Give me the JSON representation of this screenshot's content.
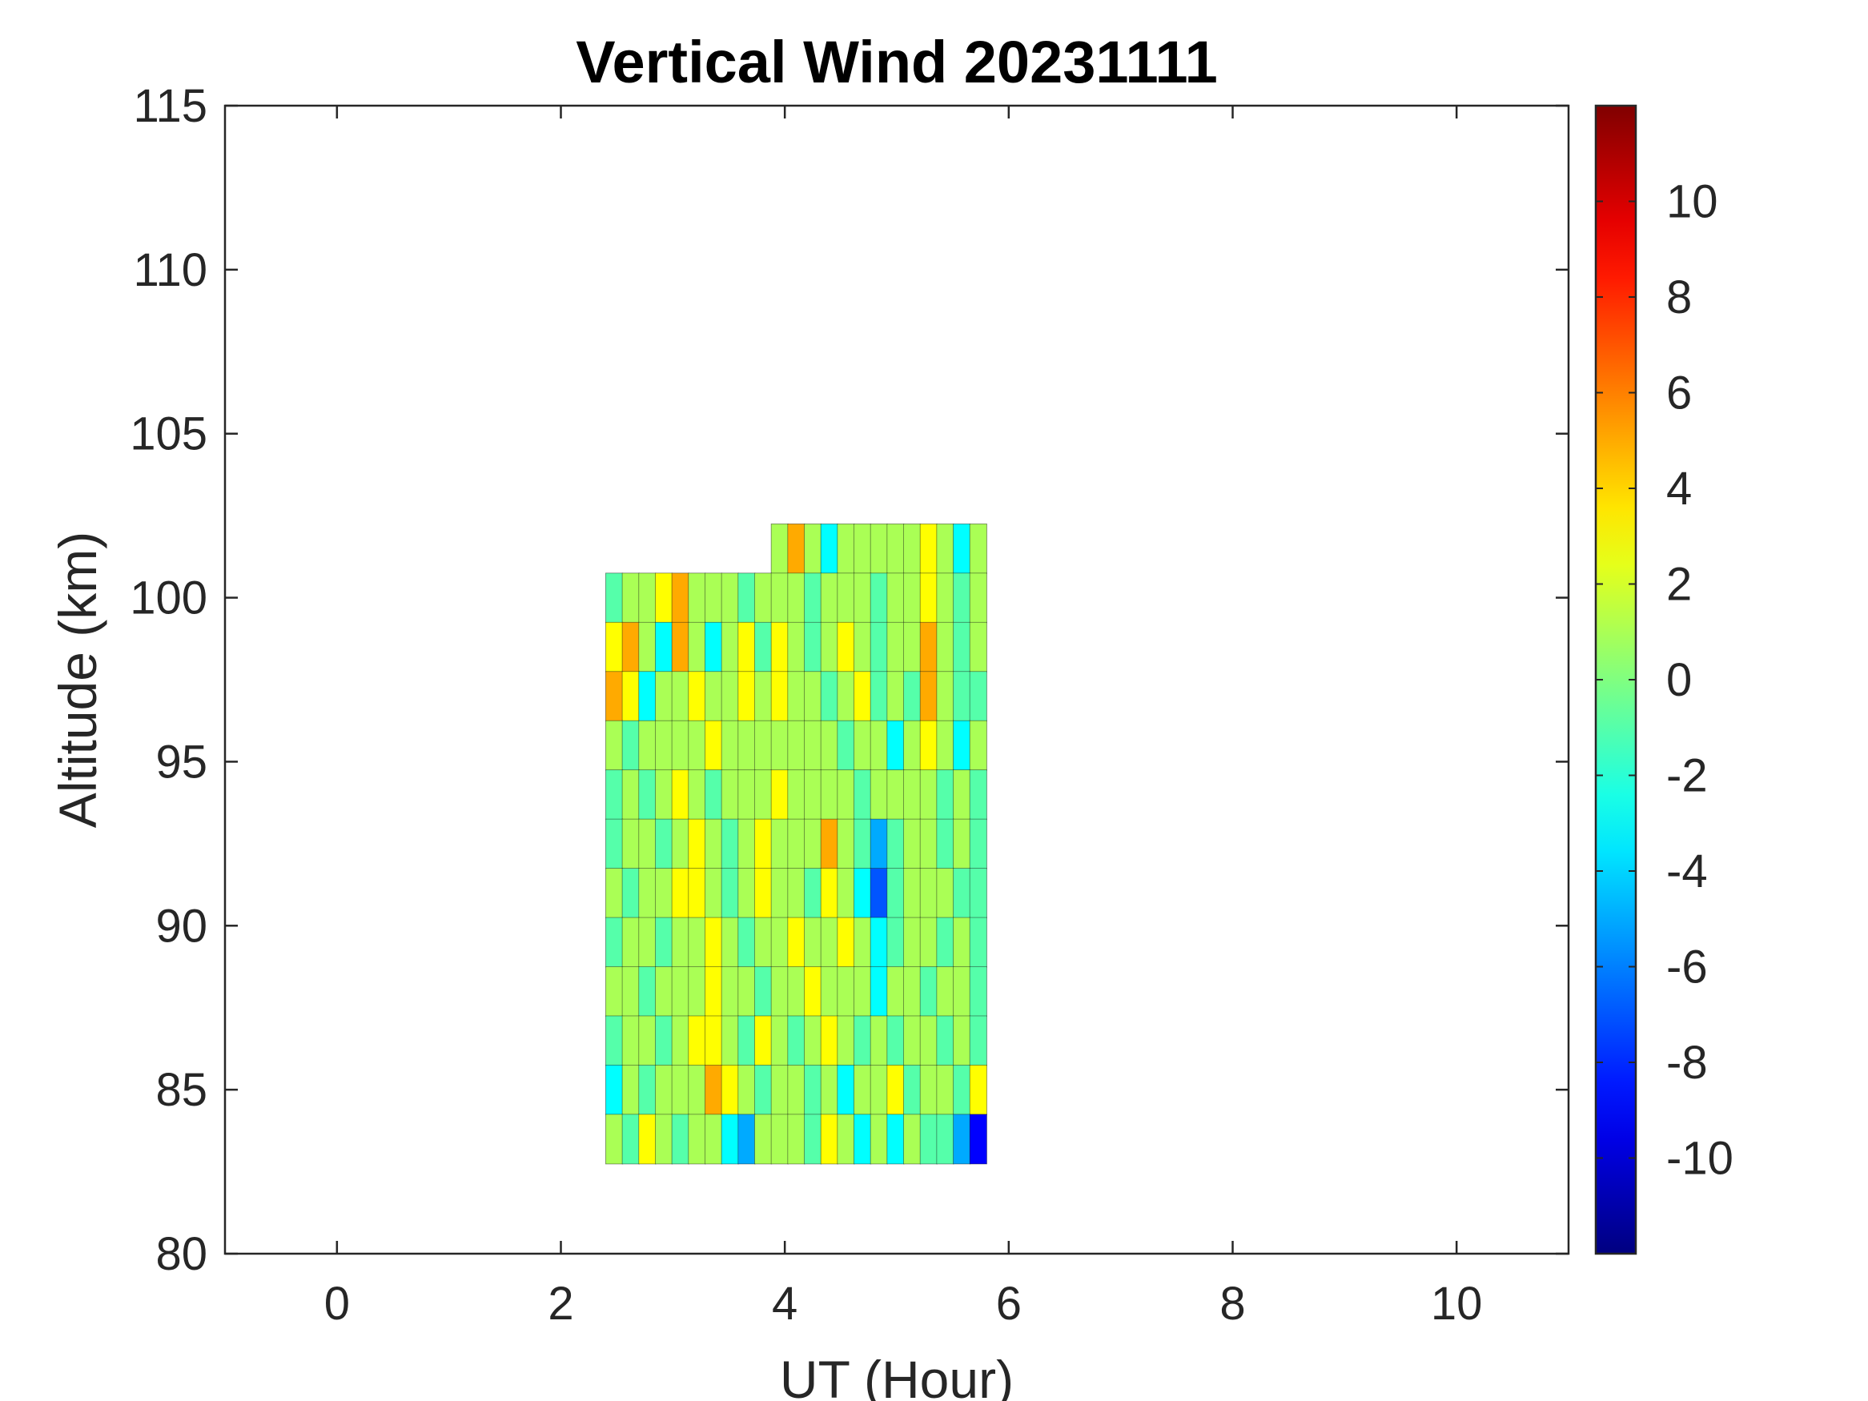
{
  "chart_data": {
    "type": "heatmap",
    "title": "Vertical Wind 20231111",
    "xlabel": "UT (Hour)",
    "ylabel": "Altitude (km)",
    "xlim": [
      -1,
      11
    ],
    "ylim": [
      80,
      115
    ],
    "xticks": [
      0,
      2,
      4,
      6,
      8,
      10
    ],
    "yticks": [
      80,
      85,
      90,
      95,
      100,
      105,
      110,
      115
    ],
    "colorbar": {
      "colormap": "jet",
      "range": [
        -12,
        12
      ],
      "ticks": [
        -10,
        -8,
        -6,
        -4,
        -2,
        0,
        2,
        4,
        6,
        8,
        10
      ],
      "contour_interval": 2,
      "placement": "right"
    },
    "data_extent": {
      "x": [
        2.4,
        5.8
      ],
      "y": [
        83.0,
        102.0
      ]
    },
    "grid": false,
    "field_rows": [
      {
        "altitude": 101.5,
        "values": [
          null,
          null,
          null,
          null,
          null,
          null,
          null,
          null,
          null,
          null,
          0.5,
          5.0,
          0.5,
          -4.0,
          1.0,
          1.0,
          0.5,
          1.0,
          0.5,
          2.0,
          1.5,
          -3.0,
          0.5
        ]
      },
      {
        "altitude": 100.0,
        "values": [
          -1.0,
          1.5,
          1.0,
          2.5,
          4.5,
          1.5,
          0.5,
          1.0,
          -1.0,
          0.5,
          1.0,
          0.5,
          -1.0,
          0.5,
          1.0,
          0.0,
          -1.0,
          0.5,
          1.5,
          3.5,
          1.0,
          -0.5,
          0.5
        ]
      },
      {
        "altitude": 98.5,
        "values": [
          2.5,
          5.5,
          0.5,
          -2.5,
          4.5,
          1.5,
          -3.5,
          0.5,
          3.5,
          -0.5,
          2.5,
          0.5,
          -1.5,
          1.0,
          2.0,
          0.5,
          -2.0,
          1.5,
          1.0,
          4.0,
          0.5,
          -1.0,
          0.0
        ]
      },
      {
        "altitude": 97.0,
        "values": [
          5.0,
          3.0,
          -3.5,
          0.5,
          1.0,
          3.0,
          0.5,
          1.0,
          2.0,
          0.5,
          3.0,
          1.0,
          0.0,
          -1.5,
          1.0,
          2.0,
          -0.5,
          1.0,
          -1.5,
          4.5,
          0.5,
          -2.0,
          -0.5
        ]
      },
      {
        "altitude": 95.5,
        "values": [
          1.0,
          -1.0,
          0.5,
          1.5,
          0.0,
          1.5,
          2.5,
          1.0,
          0.5,
          1.5,
          0.5,
          1.0,
          1.5,
          0.5,
          -1.0,
          0.5,
          1.0,
          -3.0,
          0.5,
          3.0,
          1.0,
          -3.5,
          0.5
        ]
      },
      {
        "altitude": 94.0,
        "values": [
          -1.5,
          0.5,
          -1.0,
          1.5,
          2.5,
          0.5,
          -1.5,
          0.5,
          1.0,
          1.0,
          2.0,
          0.5,
          1.0,
          1.5,
          0.0,
          -1.0,
          0.5,
          1.5,
          0.5,
          1.0,
          -1.0,
          0.5,
          -1.5
        ]
      },
      {
        "altitude": 92.5,
        "values": [
          -1.5,
          1.5,
          0.5,
          -1.0,
          1.0,
          3.5,
          0.5,
          -1.5,
          1.0,
          3.0,
          1.5,
          0.0,
          1.0,
          4.0,
          0.5,
          -2.0,
          -4.5,
          -1.5,
          1.5,
          0.5,
          -1.0,
          0.0,
          -0.5
        ]
      },
      {
        "altitude": 91.0,
        "values": [
          0.5,
          -1.5,
          1.5,
          0.5,
          2.5,
          3.5,
          1.0,
          -2.0,
          1.5,
          2.5,
          0.5,
          1.5,
          -1.0,
          3.0,
          1.0,
          -2.5,
          -6.5,
          -2.0,
          0.5,
          1.5,
          0.0,
          -1.5,
          -0.5
        ]
      },
      {
        "altitude": 89.5,
        "values": [
          -1.0,
          0.5,
          1.0,
          -1.0,
          1.5,
          0.5,
          3.5,
          1.0,
          -1.5,
          1.0,
          1.5,
          3.5,
          1.0,
          0.5,
          2.0,
          0.5,
          -2.5,
          -1.5,
          1.5,
          0.5,
          -0.5,
          1.5,
          -1.0
        ]
      },
      {
        "altitude": 88.0,
        "values": [
          0.5,
          1.5,
          -0.5,
          1.5,
          0.5,
          1.0,
          2.5,
          0.5,
          1.0,
          -1.5,
          0.5,
          1.0,
          2.0,
          1.0,
          0.5,
          1.0,
          -3.5,
          0.5,
          1.0,
          -1.5,
          1.0,
          0.5,
          -1.0
        ]
      },
      {
        "altitude": 86.5,
        "values": [
          -1.5,
          1.0,
          0.5,
          -1.5,
          1.0,
          2.0,
          3.5,
          1.5,
          -1.0,
          3.0,
          1.0,
          -1.0,
          0.5,
          3.5,
          1.0,
          -1.5,
          0.5,
          -2.0,
          1.5,
          0.5,
          -1.0,
          1.0,
          -0.5
        ]
      },
      {
        "altitude": 85.0,
        "values": [
          -2.5,
          1.0,
          -1.5,
          0.5,
          1.5,
          1.0,
          4.0,
          2.5,
          0.5,
          -1.5,
          0.5,
          1.5,
          -1.0,
          0.5,
          -2.5,
          0.5,
          1.0,
          3.5,
          -1.0,
          1.5,
          0.5,
          -2.0,
          3.0
        ]
      },
      {
        "altitude": 83.5,
        "values": [
          1.5,
          -1.0,
          3.0,
          0.5,
          -2.0,
          1.0,
          0.5,
          -2.5,
          -4.5,
          1.5,
          0.5,
          1.0,
          -1.0,
          2.0,
          0.5,
          -2.5,
          1.0,
          -3.0,
          1.5,
          -0.5,
          -1.5,
          -6.0,
          -10.0
        ]
      }
    ]
  }
}
